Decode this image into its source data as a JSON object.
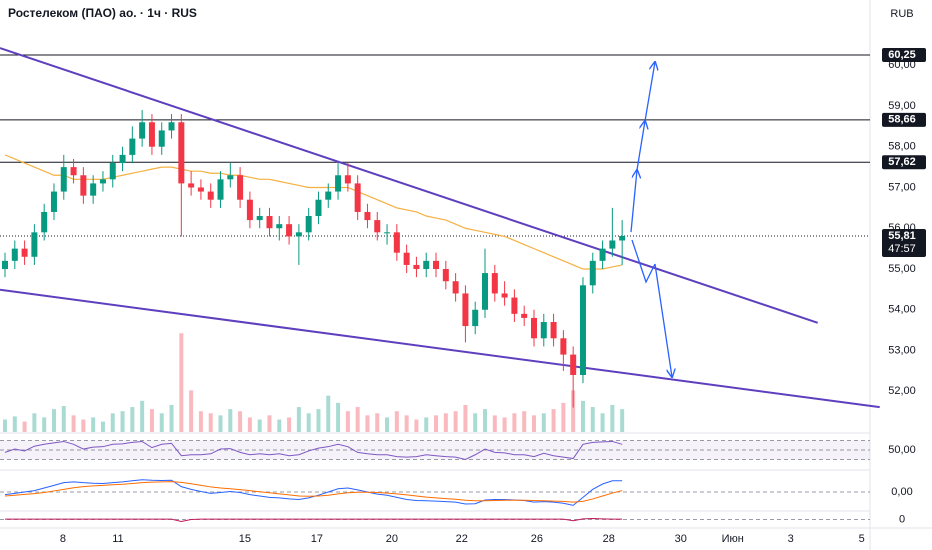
{
  "chart_data": {
    "type": "candlestick",
    "title": "Ростелеком (ПАО) ао. · 1ч · RUS",
    "currency": "RUB",
    "up_color": "#089981",
    "down_color": "#f23645",
    "open": [
      55.0,
      55.2,
      55.5,
      55.3,
      55.9,
      56.4,
      56.9,
      57.5,
      57.3,
      56.8,
      57.1,
      57.2,
      57.6,
      57.8,
      58.2,
      58.6,
      58.0,
      58.4,
      58.6,
      57.1,
      57.0,
      56.9,
      56.7,
      57.2,
      57.3,
      56.7,
      56.2,
      56.3,
      56.0,
      56.1,
      55.8,
      55.9,
      56.3,
      56.7,
      56.9,
      57.3,
      57.1,
      56.4,
      56.2,
      55.9,
      55.9,
      55.4,
      55.1,
      55.0,
      55.2,
      55.0,
      54.7,
      54.4,
      53.6,
      54.0,
      54.9,
      54.4,
      54.3,
      53.9,
      53.8,
      53.3,
      53.7,
      53.3,
      52.9,
      52.4,
      54.6,
      55.2,
      55.5,
      55.7
    ],
    "high": [
      55.4,
      55.7,
      55.7,
      56.1,
      56.6,
      57.1,
      57.8,
      57.7,
      57.5,
      57.3,
      57.4,
      57.8,
      58.0,
      58.5,
      58.9,
      58.8,
      58.6,
      58.8,
      58.8,
      57.4,
      57.2,
      57.1,
      57.4,
      57.6,
      57.5,
      56.9,
      56.5,
      56.5,
      56.3,
      56.3,
      56.1,
      56.5,
      56.9,
      57.1,
      57.6,
      57.6,
      57.3,
      56.6,
      56.4,
      56.1,
      56.1,
      55.6,
      55.3,
      55.4,
      55.4,
      55.2,
      54.9,
      54.6,
      54.2,
      55.5,
      55.1,
      54.7,
      54.5,
      54.1,
      54.0,
      53.9,
      53.9,
      53.5,
      53.1,
      54.8,
      55.4,
      55.7,
      56.5,
      56.2
    ],
    "low": [
      54.8,
      55.0,
      55.1,
      55.1,
      55.7,
      56.2,
      56.7,
      57.1,
      56.6,
      56.6,
      56.9,
      57.0,
      57.4,
      57.6,
      58.0,
      57.8,
      57.8,
      58.2,
      55.8,
      56.8,
      56.7,
      56.5,
      56.5,
      57.0,
      56.5,
      56.0,
      56.0,
      55.8,
      55.7,
      55.6,
      55.1,
      55.7,
      56.1,
      56.5,
      56.7,
      56.9,
      56.2,
      56.0,
      55.7,
      55.6,
      55.2,
      54.9,
      54.8,
      54.8,
      54.8,
      54.5,
      54.2,
      53.2,
      53.4,
      53.8,
      54.2,
      54.1,
      53.7,
      53.6,
      53.1,
      53.1,
      53.1,
      52.5,
      51.6,
      52.2,
      54.4,
      55.0,
      55.3,
      55.1
    ],
    "close": [
      55.2,
      55.5,
      55.3,
      55.9,
      56.4,
      56.9,
      57.5,
      57.3,
      56.8,
      57.1,
      57.2,
      57.6,
      57.8,
      58.2,
      58.6,
      58.0,
      58.4,
      58.6,
      57.1,
      57.0,
      56.9,
      56.7,
      57.2,
      57.3,
      56.7,
      56.2,
      56.3,
      56.0,
      56.1,
      55.8,
      55.9,
      56.3,
      56.7,
      56.9,
      57.3,
      57.1,
      56.4,
      56.2,
      55.9,
      55.9,
      55.4,
      55.1,
      55.0,
      55.2,
      55.0,
      54.7,
      54.4,
      53.6,
      54.0,
      54.9,
      54.4,
      54.3,
      53.9,
      53.8,
      53.3,
      53.7,
      53.3,
      52.9,
      52.4,
      54.6,
      55.2,
      55.5,
      55.7,
      55.81
    ],
    "xlim": [
      -0.51,
      88.3
    ],
    "xticks": [
      {
        "value": 5.92,
        "label": "8"
      },
      {
        "value": 11.53,
        "label": "11"
      },
      {
        "value": 24.49,
        "label": "15"
      },
      {
        "value": 31.84,
        "label": "17"
      },
      {
        "value": 39.49,
        "label": "20"
      },
      {
        "value": 46.63,
        "label": "22"
      },
      {
        "value": 54.29,
        "label": "26"
      },
      {
        "value": 61.63,
        "label": "28"
      },
      {
        "value": 68.98,
        "label": "30"
      },
      {
        "value": 74.29,
        "label": "Июн"
      },
      {
        "value": 80.2,
        "label": "3"
      },
      {
        "value": 87.45,
        "label": "5"
      }
    ],
    "ylim": [
      51.05,
      61.6
    ],
    "yticks": [
      {
        "value": 52,
        "label": "52,00"
      },
      {
        "value": 53,
        "label": "53,00"
      },
      {
        "value": 54,
        "label": "54,00"
      },
      {
        "value": 55,
        "label": "55,00"
      },
      {
        "value": 56,
        "label": "56,00"
      },
      {
        "value": 57,
        "label": "57,00"
      },
      {
        "value": 58,
        "label": "58,00"
      },
      {
        "value": 59,
        "label": "59,00"
      },
      {
        "value": 60,
        "label": "60,00"
      }
    ],
    "levels": [
      {
        "value": 60.25,
        "label": "60,25"
      },
      {
        "value": 58.66,
        "label": "58,66"
      },
      {
        "value": 57.62,
        "label": "57,62"
      }
    ],
    "last_price": {
      "value": 55.81,
      "label": "55,81"
    },
    "countdown": "47:57",
    "ma": {
      "color": "#f5b041",
      "values": [
        57.8,
        57.7,
        57.6,
        57.5,
        57.4,
        57.3,
        57.3,
        57.2,
        57.2,
        57.2,
        57.2,
        57.25,
        57.3,
        57.35,
        57.4,
        57.45,
        57.5,
        57.5,
        57.45,
        57.4,
        57.4,
        57.35,
        57.35,
        57.3,
        57.3,
        57.25,
        57.2,
        57.2,
        57.15,
        57.1,
        57.05,
        57.0,
        57.0,
        57.0,
        57.0,
        57.0,
        56.9,
        56.8,
        56.7,
        56.6,
        56.5,
        56.45,
        56.4,
        56.3,
        56.25,
        56.2,
        56.1,
        56.0,
        55.95,
        55.9,
        55.85,
        55.8,
        55.7,
        55.6,
        55.5,
        55.4,
        55.3,
        55.2,
        55.1,
        55.0,
        55.0,
        55.0,
        55.05,
        55.1
      ]
    },
    "trendlines": [
      {
        "color": "#5e3fbe",
        "points": [
          [
            -0.51,
            60.42
          ],
          [
            82.96,
            53.68
          ]
        ]
      },
      {
        "color": "#5e3fbe",
        "points": [
          [
            -0.51,
            54.49
          ],
          [
            89.29,
            51.61
          ]
        ]
      }
    ],
    "volume": {
      "ylim": [
        0,
        100
      ],
      "values": [
        12,
        15,
        10,
        18,
        14,
        22,
        25,
        16,
        12,
        14,
        10,
        18,
        20,
        24,
        30,
        22,
        18,
        26,
        95,
        40,
        20,
        18,
        16,
        22,
        20,
        14,
        12,
        16,
        12,
        14,
        24,
        18,
        22,
        35,
        28,
        20,
        24,
        16,
        18,
        14,
        20,
        16,
        12,
        14,
        16,
        18,
        20,
        26,
        18,
        22,
        16,
        14,
        18,
        20,
        16,
        18,
        22,
        28,
        40,
        30,
        24,
        18,
        26,
        22
      ]
    },
    "rsi": {
      "color": "#7e57c2",
      "ylim": [
        16.3,
        83.7
      ],
      "levels": [
        70,
        50,
        30
      ],
      "yticks": [
        {
          "value": 50,
          "label": "50,00"
        }
      ],
      "values": [
        45,
        52,
        48,
        58,
        62,
        65,
        68,
        62,
        52,
        56,
        57,
        62,
        63,
        66,
        68,
        55,
        62,
        64,
        38,
        40,
        40,
        42,
        52,
        53,
        45,
        40,
        42,
        40,
        42,
        38,
        40,
        48,
        54,
        57,
        62,
        57,
        45,
        42,
        40,
        40,
        36,
        35,
        36,
        40,
        38,
        36,
        35,
        30,
        40,
        52,
        45,
        44,
        40,
        40,
        36,
        43,
        38,
        35,
        32,
        62,
        66,
        67,
        68,
        62
      ]
    },
    "macd": {
      "ylim": [
        -0.6,
        0.6
      ],
      "yticks": [
        {
          "value": 0,
          "label": "0,00"
        }
      ],
      "series": [
        {
          "color": "#2962ff",
          "values": [
            -0.1,
            -0.05,
            0.0,
            0.05,
            0.15,
            0.25,
            0.35,
            0.38,
            0.35,
            0.33,
            0.32,
            0.35,
            0.38,
            0.42,
            0.46,
            0.44,
            0.43,
            0.44,
            0.2,
            0.1,
            0.02,
            -0.05,
            -0.02,
            0.02,
            -0.02,
            -0.1,
            -0.15,
            -0.2,
            -0.22,
            -0.26,
            -0.28,
            -0.22,
            -0.12,
            0.0,
            0.12,
            0.15,
            0.08,
            0.0,
            -0.08,
            -0.12,
            -0.2,
            -0.28,
            -0.32,
            -0.33,
            -0.34,
            -0.36,
            -0.38,
            -0.45,
            -0.44,
            -0.3,
            -0.28,
            -0.28,
            -0.3,
            -0.32,
            -0.38,
            -0.36,
            -0.38,
            -0.42,
            -0.5,
            -0.2,
            0.1,
            0.3,
            0.42,
            0.42
          ]
        },
        {
          "color": "#ff6d00",
          "values": [
            -0.15,
            -0.12,
            -0.09,
            -0.06,
            -0.02,
            0.04,
            0.1,
            0.16,
            0.2,
            0.23,
            0.25,
            0.27,
            0.29,
            0.32,
            0.35,
            0.37,
            0.38,
            0.39,
            0.36,
            0.31,
            0.25,
            0.19,
            0.15,
            0.12,
            0.09,
            0.05,
            0.01,
            -0.03,
            -0.07,
            -0.11,
            -0.15,
            -0.16,
            -0.15,
            -0.12,
            -0.07,
            -0.03,
            -0.01,
            -0.01,
            -0.02,
            -0.04,
            -0.07,
            -0.11,
            -0.15,
            -0.19,
            -0.22,
            -0.25,
            -0.27,
            -0.31,
            -0.33,
            -0.33,
            -0.32,
            -0.31,
            -0.31,
            -0.31,
            -0.32,
            -0.33,
            -0.34,
            -0.35,
            -0.38,
            -0.35,
            -0.26,
            -0.15,
            -0.04,
            0.05
          ]
        }
      ]
    },
    "oscillator": {
      "color": "#c2185b",
      "ylim": [
        -1,
        1
      ],
      "yticks": [
        0
      ],
      "values": [
        0.05,
        0.05,
        0.05,
        0.05,
        0.05,
        0.05,
        0.05,
        0.05,
        0.05,
        0.05,
        0.05,
        0.05,
        0.05,
        0.05,
        0.05,
        0.05,
        0.05,
        0.05,
        -0.3,
        0.0,
        0.05,
        0.05,
        0.05,
        0.05,
        0.05,
        0.05,
        0.05,
        0.05,
        0.05,
        0.05,
        0.05,
        0.05,
        0.05,
        0.05,
        0.05,
        0.05,
        0.05,
        0.05,
        0.05,
        0.05,
        0.05,
        0.05,
        0.05,
        0.05,
        0.05,
        0.05,
        0.05,
        0.05,
        0.05,
        0.05,
        0.05,
        0.05,
        0.05,
        0.05,
        0.05,
        0.05,
        0.05,
        0.05,
        -0.2,
        0.1,
        0.15,
        0.1,
        0.05,
        0.05
      ]
    }
  }
}
